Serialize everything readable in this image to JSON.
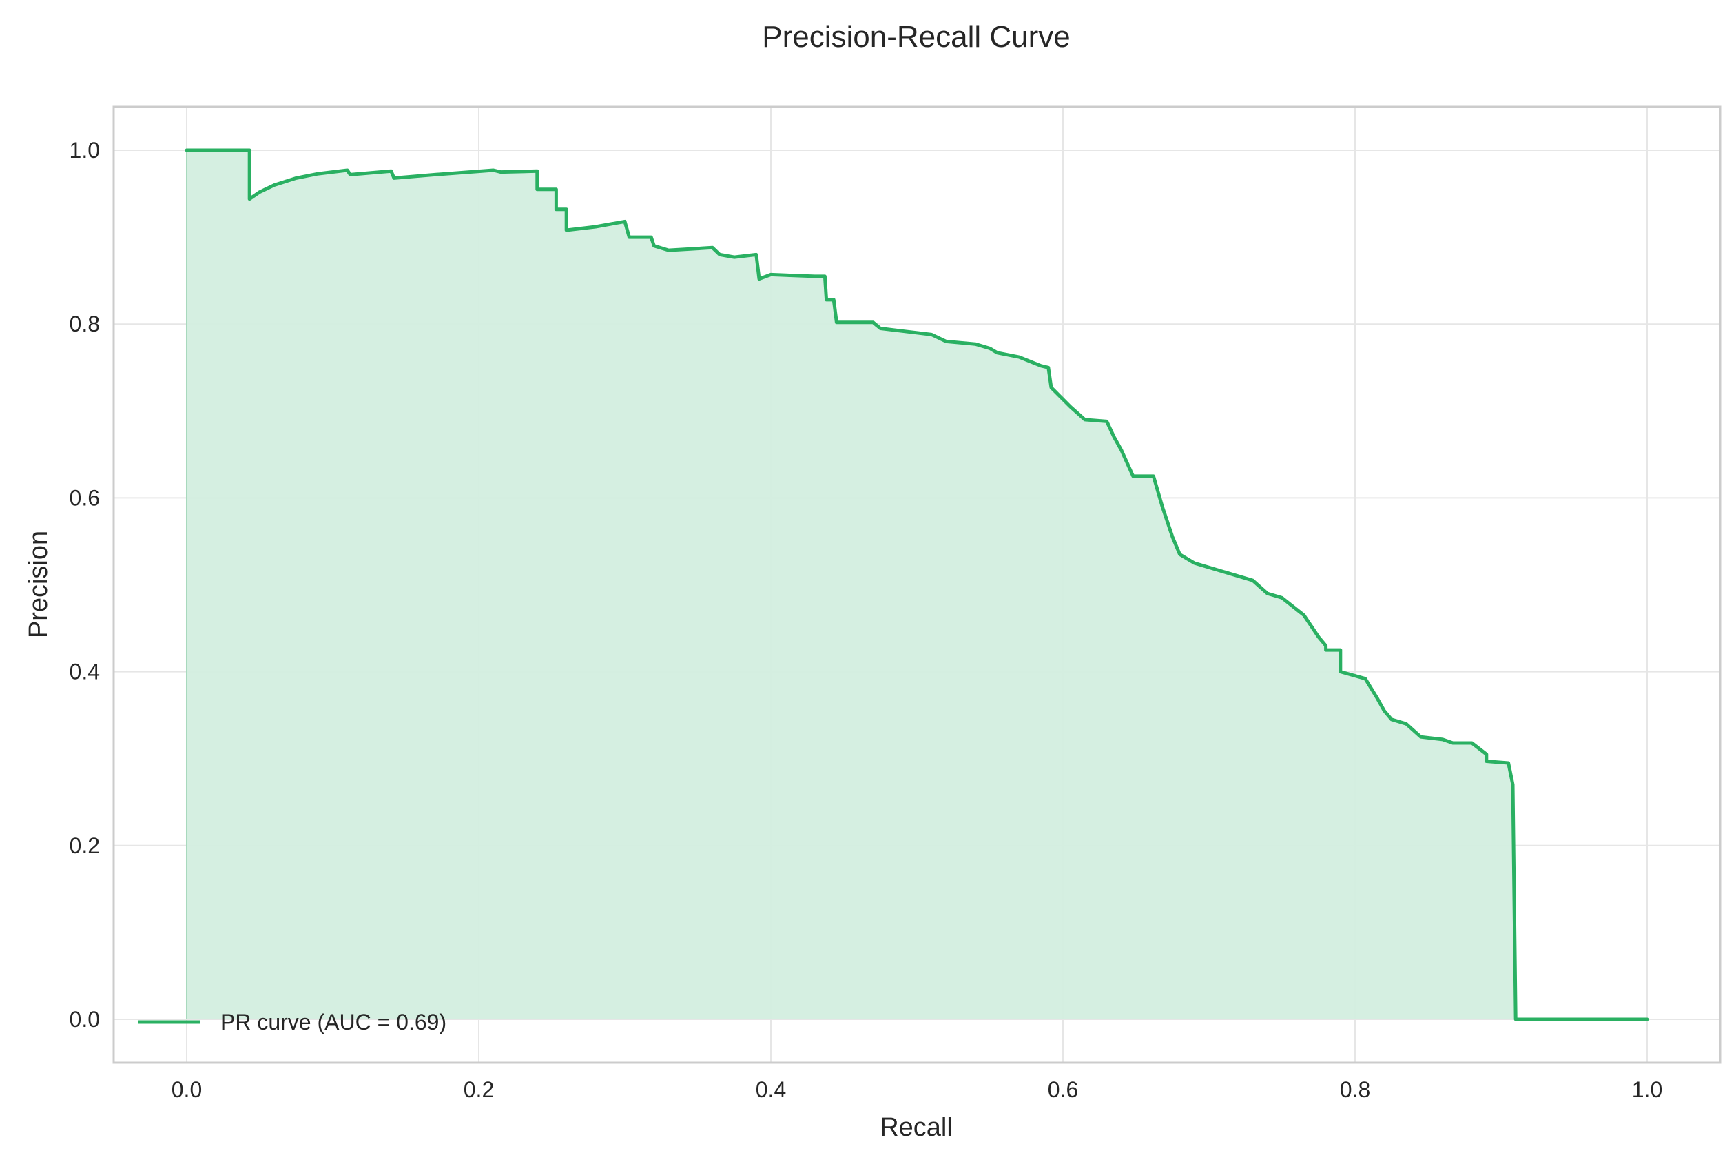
{
  "chart_data": {
    "type": "line",
    "title": "Precision-Recall Curve",
    "xlabel": "Recall",
    "ylabel": "Precision",
    "xlim": [
      -0.05,
      1.05
    ],
    "ylim": [
      -0.05,
      1.05
    ],
    "x_ticks": [
      "0.0",
      "0.2",
      "0.4",
      "0.6",
      "0.8",
      "1.0"
    ],
    "y_ticks": [
      "0.0",
      "0.2",
      "0.4",
      "0.6",
      "0.8",
      "1.0"
    ],
    "grid": true,
    "legend_position": "lower-left",
    "colors": {
      "line": "#2ab062",
      "fill": "#d3eedf",
      "grid": "#e6e6e6",
      "frame": "#cccccc"
    },
    "series": [
      {
        "name": "PR curve (AUC = 0.69)",
        "fill_to_zero": true,
        "step": true,
        "points": [
          [
            0.0,
            1.0
          ],
          [
            0.043,
            1.0
          ],
          [
            0.043,
            0.944
          ],
          [
            0.05,
            0.952
          ],
          [
            0.06,
            0.96
          ],
          [
            0.075,
            0.968
          ],
          [
            0.09,
            0.973
          ],
          [
            0.11,
            0.977
          ],
          [
            0.112,
            0.972
          ],
          [
            0.14,
            0.976
          ],
          [
            0.142,
            0.968
          ],
          [
            0.17,
            0.972
          ],
          [
            0.21,
            0.977
          ],
          [
            0.215,
            0.975
          ],
          [
            0.24,
            0.976
          ],
          [
            0.24,
            0.955
          ],
          [
            0.253,
            0.955
          ],
          [
            0.253,
            0.932
          ],
          [
            0.26,
            0.932
          ],
          [
            0.26,
            0.908
          ],
          [
            0.28,
            0.912
          ],
          [
            0.3,
            0.918
          ],
          [
            0.303,
            0.9
          ],
          [
            0.318,
            0.9
          ],
          [
            0.32,
            0.89
          ],
          [
            0.33,
            0.885
          ],
          [
            0.36,
            0.888
          ],
          [
            0.365,
            0.88
          ],
          [
            0.375,
            0.877
          ],
          [
            0.39,
            0.88
          ],
          [
            0.392,
            0.852
          ],
          [
            0.4,
            0.857
          ],
          [
            0.43,
            0.855
          ],
          [
            0.437,
            0.855
          ],
          [
            0.438,
            0.828
          ],
          [
            0.443,
            0.828
          ],
          [
            0.445,
            0.802
          ],
          [
            0.47,
            0.802
          ],
          [
            0.475,
            0.795
          ],
          [
            0.49,
            0.792
          ],
          [
            0.51,
            0.788
          ],
          [
            0.52,
            0.78
          ],
          [
            0.54,
            0.777
          ],
          [
            0.55,
            0.772
          ],
          [
            0.555,
            0.767
          ],
          [
            0.57,
            0.762
          ],
          [
            0.585,
            0.752
          ],
          [
            0.59,
            0.75
          ],
          [
            0.592,
            0.727
          ],
          [
            0.605,
            0.705
          ],
          [
            0.615,
            0.69
          ],
          [
            0.63,
            0.688
          ],
          [
            0.635,
            0.67
          ],
          [
            0.64,
            0.655
          ],
          [
            0.648,
            0.625
          ],
          [
            0.662,
            0.625
          ],
          [
            0.668,
            0.59
          ],
          [
            0.675,
            0.555
          ],
          [
            0.68,
            0.535
          ],
          [
            0.69,
            0.525
          ],
          [
            0.71,
            0.515
          ],
          [
            0.73,
            0.505
          ],
          [
            0.74,
            0.49
          ],
          [
            0.75,
            0.485
          ],
          [
            0.765,
            0.465
          ],
          [
            0.775,
            0.44
          ],
          [
            0.78,
            0.43
          ],
          [
            0.78,
            0.425
          ],
          [
            0.79,
            0.425
          ],
          [
            0.79,
            0.4
          ],
          [
            0.807,
            0.392
          ],
          [
            0.815,
            0.37
          ],
          [
            0.82,
            0.355
          ],
          [
            0.825,
            0.345
          ],
          [
            0.835,
            0.34
          ],
          [
            0.845,
            0.325
          ],
          [
            0.86,
            0.322
          ],
          [
            0.867,
            0.318
          ],
          [
            0.88,
            0.318
          ],
          [
            0.89,
            0.305
          ],
          [
            0.89,
            0.297
          ],
          [
            0.905,
            0.295
          ],
          [
            0.908,
            0.27
          ],
          [
            0.91,
            0.0
          ],
          [
            1.0,
            0.0
          ]
        ]
      }
    ]
  }
}
